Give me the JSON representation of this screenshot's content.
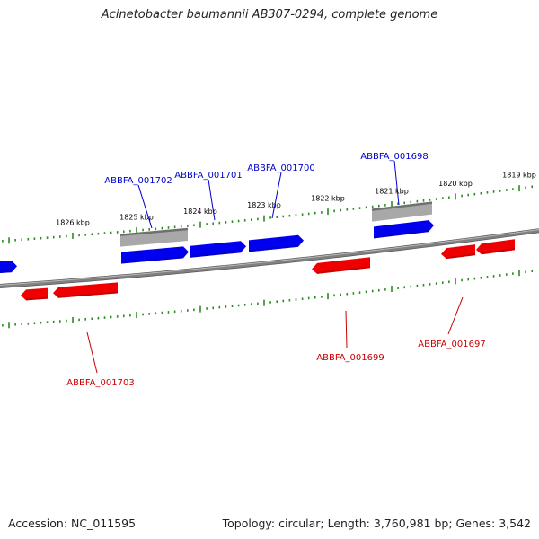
{
  "title": "Acinetobacter baumannii AB307-0294, complete genome",
  "footer": {
    "accession": "Accession: NC_011595",
    "topology": "Topology: circular; Length: 3,760,981 bp; Genes: 3,542"
  },
  "colors": {
    "forward_gene": "#0000ee",
    "reverse_gene": "#ee0000",
    "rna_gene": "#a8a8a8",
    "backbone": "#808080",
    "tick": "#2e8b22",
    "forward_label": "#0000cc",
    "reverse_label": "#cc0000"
  },
  "ticks": {
    "major": [
      "1826 kbp",
      "1825 kbp",
      "1824 kbp",
      "1823 kbp",
      "1822 kbp",
      "1821 kbp",
      "1820 kbp",
      "1819 kbp"
    ]
  },
  "genes": {
    "forward_labels": [
      "ABBFA_001702",
      "ABBFA_001701",
      "ABBFA_001700",
      "ABBFA_001698"
    ],
    "reverse_labels": [
      "ABBFA_001703",
      "ABBFA_001699",
      "ABBFA_001697"
    ]
  }
}
